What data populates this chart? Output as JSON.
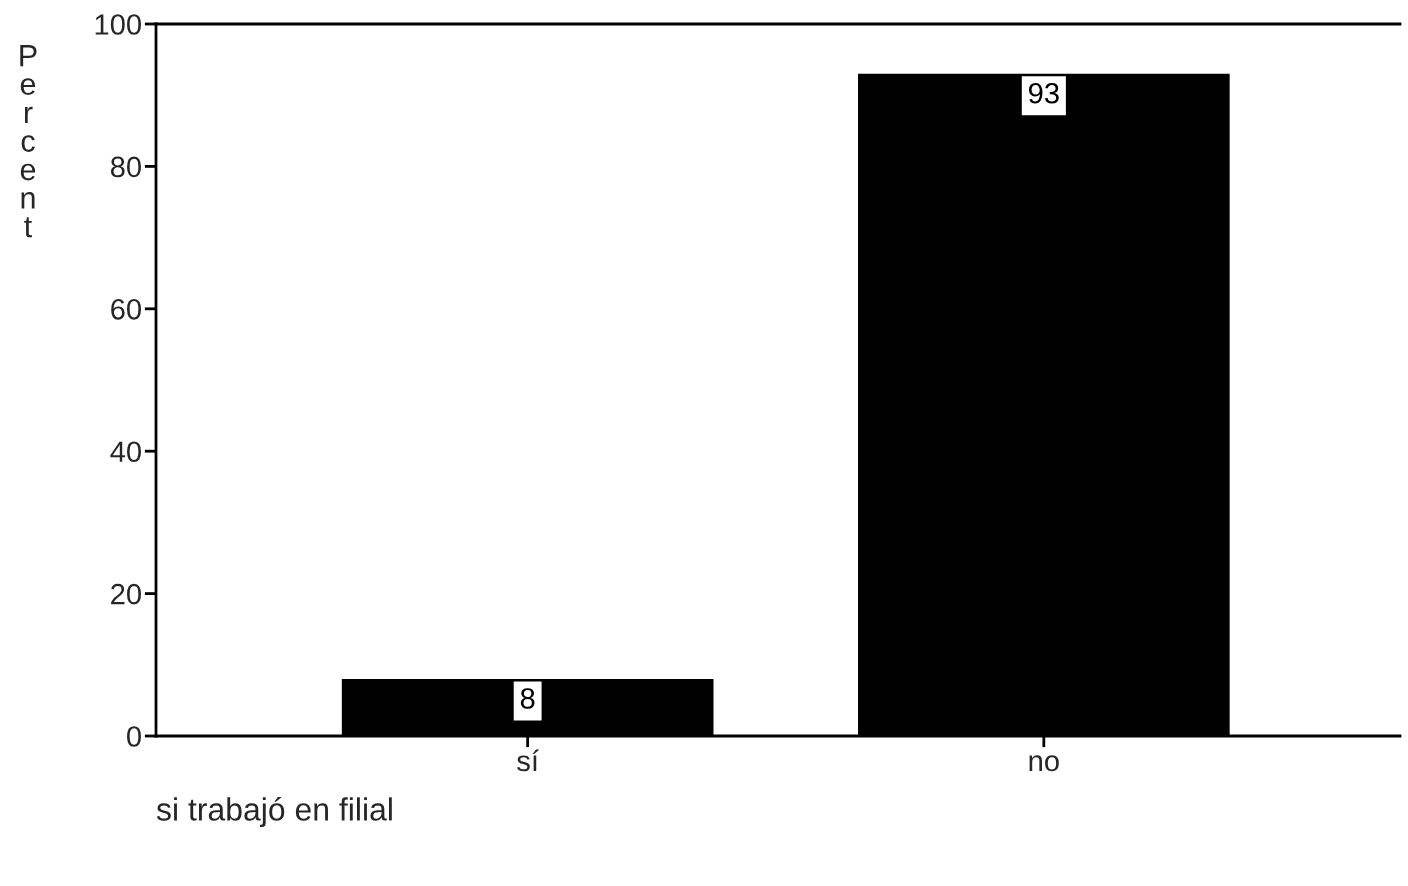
{
  "chart_data": {
    "type": "bar",
    "categories": [
      "sí",
      "no"
    ],
    "values": [
      8,
      93
    ],
    "color": "#000000",
    "ylabel": "Percent",
    "xlabel": "si trabajó en filial",
    "ylim": [
      0,
      100
    ],
    "yticks": [
      0,
      20,
      40,
      60,
      80,
      100
    ],
    "data_labels": true,
    "grid": false,
    "legend": false
  }
}
